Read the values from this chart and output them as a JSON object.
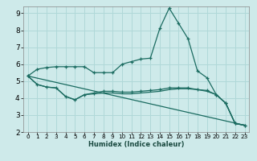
{
  "xlabel": "Humidex (Indice chaleur)",
  "ylabel": "",
  "background_color": "#ceeaea",
  "line_color": "#1a6b60",
  "grid_color": "#b0d8d8",
  "xlim": [
    -0.5,
    23.5
  ],
  "ylim": [
    2,
    9.4
  ],
  "yticks": [
    2,
    3,
    4,
    5,
    6,
    7,
    8,
    9
  ],
  "xticks": [
    0,
    1,
    2,
    3,
    4,
    5,
    6,
    7,
    8,
    9,
    10,
    11,
    12,
    13,
    14,
    15,
    16,
    17,
    18,
    19,
    20,
    21,
    22,
    23
  ],
  "lines": [
    {
      "x": [
        0,
        1,
        2,
        3,
        4,
        5,
        6,
        7,
        8,
        9,
        10,
        11,
        12,
        13,
        14,
        15,
        16,
        17,
        18,
        19,
        20,
        21,
        22,
        23
      ],
      "y": [
        5.3,
        5.7,
        5.8,
        5.85,
        5.85,
        5.85,
        5.85,
        5.5,
        5.5,
        5.5,
        6.0,
        6.15,
        6.3,
        6.35,
        8.1,
        9.3,
        8.4,
        7.5,
        5.6,
        5.2,
        4.2,
        3.7,
        2.5,
        2.4
      ],
      "marker": true
    },
    {
      "x": [
        0,
        1,
        2,
        3,
        4,
        5,
        6,
        7,
        8,
        9,
        10,
        11,
        12,
        13,
        14,
        15,
        16,
        17,
        18,
        19,
        20,
        21,
        22,
        23
      ],
      "y": [
        5.3,
        4.8,
        4.65,
        4.6,
        4.1,
        3.9,
        4.2,
        4.3,
        4.4,
        4.4,
        4.35,
        4.35,
        4.4,
        4.45,
        4.5,
        4.6,
        4.6,
        4.6,
        4.5,
        4.45,
        4.2,
        3.7,
        2.5,
        2.4
      ],
      "marker": true
    },
    {
      "x": [
        0,
        1,
        2,
        3,
        4,
        5,
        6,
        7,
        8,
        9,
        10,
        11,
        12,
        13,
        14,
        15,
        16,
        17,
        18,
        19,
        20,
        21,
        22,
        23
      ],
      "y": [
        5.3,
        4.8,
        4.65,
        4.6,
        4.1,
        3.9,
        4.2,
        4.25,
        4.3,
        4.3,
        4.25,
        4.25,
        4.3,
        4.35,
        4.4,
        4.5,
        4.55,
        4.55,
        4.5,
        4.4,
        4.2,
        3.7,
        2.5,
        2.4
      ],
      "marker": false
    },
    {
      "x": [
        0,
        23
      ],
      "y": [
        5.3,
        2.4
      ],
      "marker": false
    }
  ]
}
